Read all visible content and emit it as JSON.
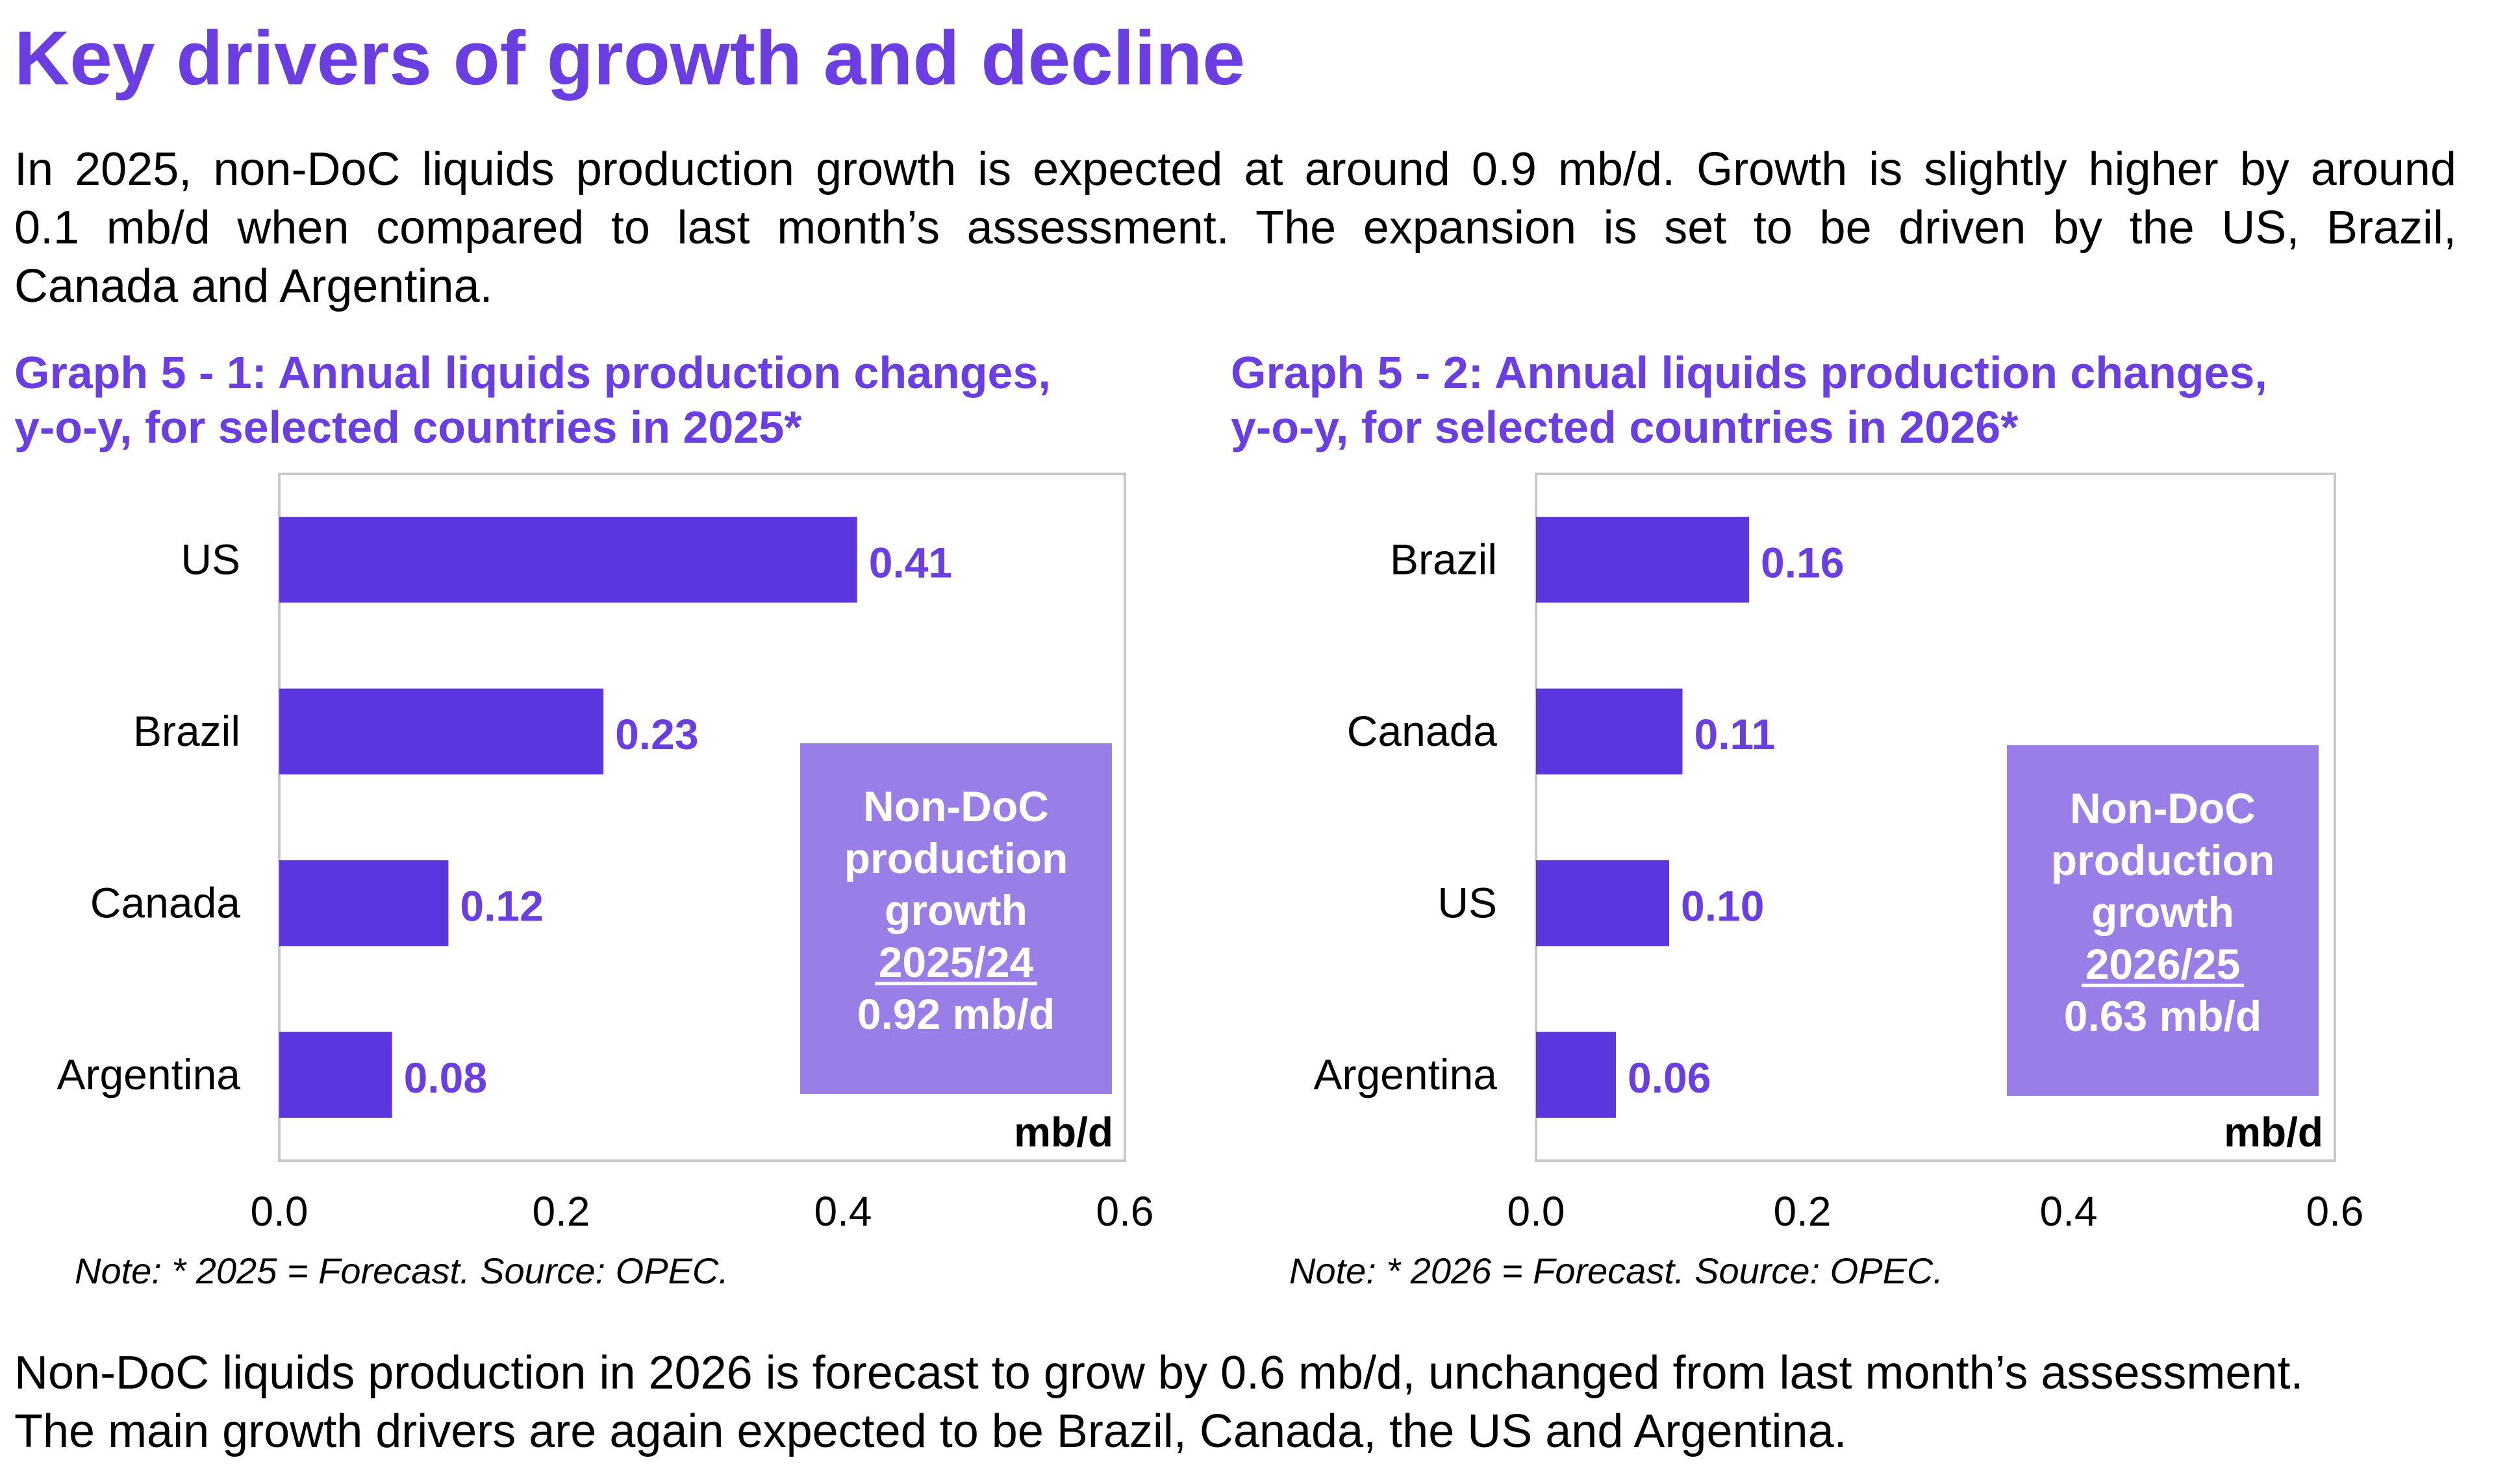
{
  "heading": "Key drivers of growth and decline",
  "intro": {
    "lines": [
      "In 2025, non-DoC liquids production growth is expected at around 0.9 mb/d. Growth is slightly higher by around",
      "0.1 mb/d when compared to last month’s assessment. The expansion is set to be driven by the US, Brazil,",
      "Canada and Argentina."
    ]
  },
  "outro": {
    "lines": [
      "Non-DoC liquids production in 2026 is forecast to grow by 0.6 mb/d, unchanged from last month’s assessment.",
      "The main growth drivers are again expected to be Brazil, Canada, the US and Argentina."
    ]
  },
  "colors": {
    "accent": "#6a3ee0",
    "bar": "#5b35dd",
    "box": "#9a7ee8"
  },
  "chart_data": [
    {
      "type": "bar",
      "orientation": "horizontal",
      "title_lines": [
        "Graph 5 - 1: Annual liquids production changes,",
        "y-o-y, for selected countries in 2025*"
      ],
      "categories": [
        "US",
        "Brazil",
        "Canada",
        "Argentina"
      ],
      "values": [
        0.41,
        0.23,
        0.12,
        0.08
      ],
      "value_labels": [
        "0.41",
        "0.23",
        "0.12",
        "0.08"
      ],
      "xlim": [
        0.0,
        0.6
      ],
      "xticks": [
        "0.0",
        "0.2",
        "0.4",
        "0.6"
      ],
      "unit_label": "mb/d",
      "annotation": {
        "lines": [
          "Non-DoC",
          "production",
          "growth"
        ],
        "period": "2025/24",
        "value": "0.92 mb/d"
      },
      "note": "Note: * 2025 = Forecast. Source: OPEC."
    },
    {
      "type": "bar",
      "orientation": "horizontal",
      "title_lines": [
        "Graph 5 - 2: Annual liquids production changes,",
        "y-o-y, for selected countries in 2026*"
      ],
      "categories": [
        "Brazil",
        "Canada",
        "US",
        "Argentina"
      ],
      "values": [
        0.16,
        0.11,
        0.1,
        0.06
      ],
      "value_labels": [
        "0.16",
        "0.11",
        "0.10",
        "0.06"
      ],
      "xlim": [
        0.0,
        0.6
      ],
      "xticks": [
        "0.0",
        "0.2",
        "0.4",
        "0.6"
      ],
      "unit_label": "mb/d",
      "annotation": {
        "lines": [
          "Non-DoC",
          "production",
          "growth"
        ],
        "period": "2026/25",
        "value": "0.63 mb/d"
      },
      "note": "Note: * 2026 = Forecast. Source: OPEC."
    }
  ]
}
